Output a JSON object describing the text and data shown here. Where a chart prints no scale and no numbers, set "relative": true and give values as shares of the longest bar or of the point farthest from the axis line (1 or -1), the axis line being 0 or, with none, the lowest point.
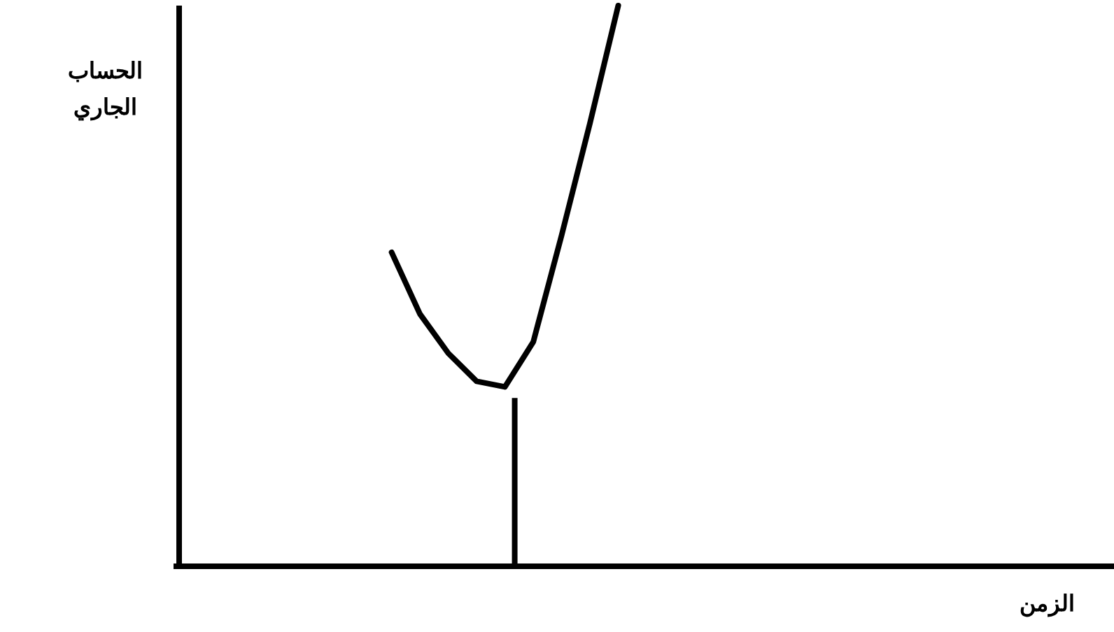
{
  "chart_data": {
    "type": "line",
    "xlabel": "الزمن",
    "ylabel": "الحساب الجاري",
    "relative": true,
    "categories": [
      null,
      null,
      null,
      null,
      null,
      null,
      null,
      null,
      null,
      null,
      null,
      null,
      null,
      null,
      null,
      null,
      null,
      null,
      null,
      null,
      null,
      null,
      null,
      null,
      null,
      null,
      null,
      null,
      null,
      null,
      null,
      null,
      null
    ],
    "series": [
      {
        "color": "#000000",
        "values": [
          null,
          null,
          null,
          null,
          null,
          null,
          null,
          0.56,
          0.45,
          0.38,
          0.33,
          0.32,
          0.4,
          0.59,
          0.79,
          1,
          null,
          null,
          null,
          null,
          null,
          null,
          null,
          null,
          null,
          null,
          null,
          null,
          null,
          null,
          null,
          null,
          null
        ]
      }
    ]
  }
}
